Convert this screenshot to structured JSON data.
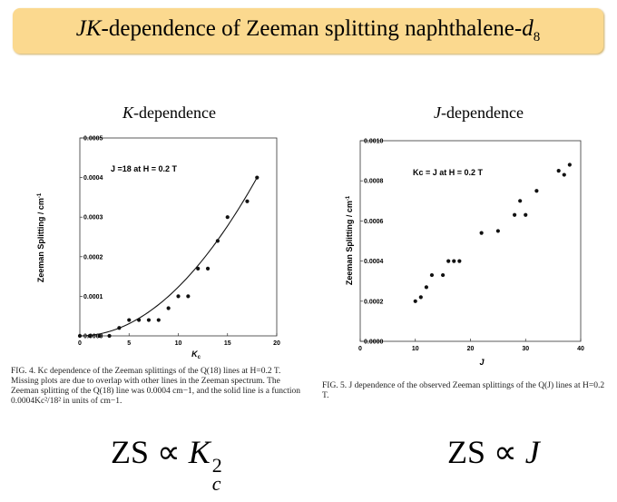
{
  "title": {
    "prefix": "JK",
    "main": "-dependence of Zeeman splitting naphthalene-",
    "d": "d",
    "sub": "8"
  },
  "left_panel": {
    "head_var": "K",
    "head_text": "-dependence",
    "annotation": "J =18 at H = 0.2 T",
    "caption": "FIG. 4. Kc dependence of the Zeeman splittings of the Q(18) lines at H=0.2 T. Missing plots are due to overlap with other lines in the Zeeman spectrum. The Zeeman splitting of the Q(18) line was 0.0004 cm−1, and the solid line is a function 0.0004Kc²/18² in units of cm−1.",
    "formula_left": "ZS ∝ ",
    "formula_var": "K",
    "formula_sub": "c",
    "formula_sup": "2"
  },
  "right_panel": {
    "head_var": "J",
    "head_text": "-dependence",
    "annotation": "Kc = J   at   H = 0.2 T",
    "caption": "FIG. 5. J dependence of the observed Zeeman splittings of the Q(J) lines at H=0.2 T.",
    "formula_left": "ZS ∝ ",
    "formula_var": "J"
  },
  "chart_data": [
    {
      "type": "scatter",
      "title": "K-dependence",
      "xlabel": "Kc",
      "ylabel": "Zeeman Splitting / cm-1",
      "xlim": [
        0,
        20
      ],
      "ylim": [
        0,
        0.0005
      ],
      "xticks": [
        "0",
        "5",
        "10",
        "15",
        "20"
      ],
      "yticks": [
        "0.0000",
        "0.0001",
        "0.0002",
        "0.0003",
        "0.0004",
        "0.0005"
      ],
      "grid": false,
      "fit_curve": "0.0004 Kc^2 / 18^2",
      "points": [
        [
          0,
          0.0
        ],
        [
          1,
          0.0
        ],
        [
          2,
          0.0
        ],
        [
          3,
          0.0
        ],
        [
          4,
          2e-05
        ],
        [
          5,
          4e-05
        ],
        [
          6,
          4e-05
        ],
        [
          7,
          4e-05
        ],
        [
          8,
          4e-05
        ],
        [
          9,
          7e-05
        ],
        [
          10,
          0.0001
        ],
        [
          11,
          0.0001
        ],
        [
          12,
          0.00017
        ],
        [
          13,
          0.00017
        ],
        [
          14,
          0.00024
        ],
        [
          15,
          0.0003
        ],
        [
          17,
          0.00034
        ],
        [
          18,
          0.0004
        ]
      ]
    },
    {
      "type": "scatter",
      "title": "J-dependence",
      "xlabel": "J",
      "ylabel": "Zeeman Splitting / cm-1",
      "xlim": [
        0,
        40
      ],
      "ylim": [
        0,
        0.001
      ],
      "xticks": [
        "0",
        "10",
        "20",
        "30",
        "40"
      ],
      "yticks": [
        "0.0000",
        "0.0002",
        "0.0004",
        "0.0006",
        "0.0008",
        "0.0010"
      ],
      "grid": false,
      "points": [
        [
          10,
          0.0002
        ],
        [
          11,
          0.00022
        ],
        [
          12,
          0.00027
        ],
        [
          13,
          0.00033
        ],
        [
          15,
          0.00033
        ],
        [
          16,
          0.0004
        ],
        [
          17,
          0.0004
        ],
        [
          18,
          0.0004
        ],
        [
          22,
          0.00054
        ],
        [
          25,
          0.00055
        ],
        [
          28,
          0.00063
        ],
        [
          29,
          0.0007
        ],
        [
          30,
          0.00063
        ],
        [
          32,
          0.00075
        ],
        [
          36,
          0.00085
        ],
        [
          37,
          0.00083
        ],
        [
          38,
          0.00088
        ]
      ]
    }
  ]
}
